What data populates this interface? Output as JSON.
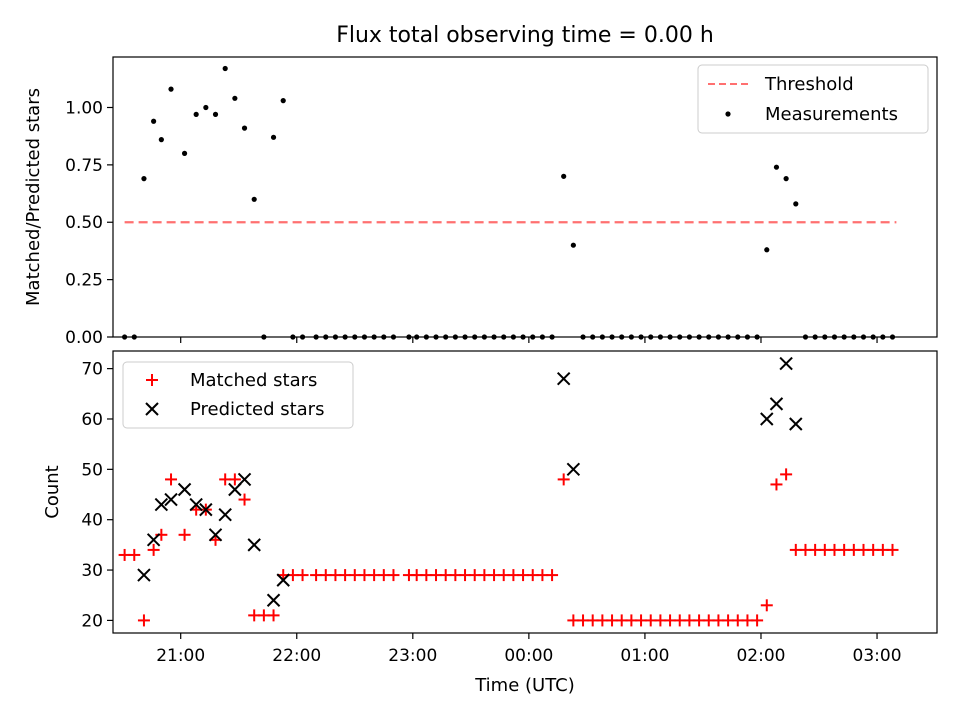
{
  "title": "Flux total observing time = 0.00 h",
  "colors": {
    "threshold": "#ff7070",
    "measurements": "#000000",
    "matched": "#ff0000",
    "predicted": "#000000"
  },
  "chart_data": [
    {
      "type": "scatter",
      "panel": "top",
      "ylabel": "Matched/Predicted stars",
      "xlabel": "",
      "xlim": [
        "20:25",
        "03:31"
      ],
      "ylim": [
        0,
        1.22
      ],
      "yticks": [
        "0.00",
        "0.25",
        "0.50",
        "0.75",
        "1.00"
      ],
      "xtick_values": [
        "21:00",
        "22:00",
        "23:00",
        "00:00",
        "01:00",
        "02:00",
        "03:00"
      ],
      "legend": {
        "placement": "top-right",
        "entries": [
          {
            "label": "Threshold",
            "marker": "dashed-line"
          },
          {
            "label": "Measurements",
            "marker": "dot"
          }
        ]
      },
      "threshold": {
        "name": "Threshold",
        "y": 0.5,
        "x_start": "20:31",
        "x_end": "03:10"
      },
      "series": [
        {
          "name": "Measurements",
          "marker": "dot",
          "points": [
            [
              "20:31",
              0
            ],
            [
              "20:36",
              0
            ],
            [
              "20:41",
              0.69
            ],
            [
              "20:46",
              0.94
            ],
            [
              "20:50",
              0.86
            ],
            [
              "20:55",
              1.08
            ],
            [
              "21:02",
              0.8
            ],
            [
              "21:08",
              0.97
            ],
            [
              "21:13",
              1.0
            ],
            [
              "21:18",
              0.97
            ],
            [
              "21:23",
              1.17
            ],
            [
              "21:28",
              1.04
            ],
            [
              "21:33",
              0.91
            ],
            [
              "21:38",
              0.6
            ],
            [
              "21:43",
              0
            ],
            [
              "21:48",
              0.87
            ],
            [
              "21:53",
              1.03
            ],
            [
              "21:58",
              0
            ],
            [
              "22:03",
              0
            ],
            [
              "22:10",
              0
            ],
            [
              "22:15",
              0
            ],
            [
              "22:20",
              0
            ],
            [
              "22:25",
              0
            ],
            [
              "22:30",
              0
            ],
            [
              "22:35",
              0
            ],
            [
              "22:40",
              0
            ],
            [
              "22:45",
              0
            ],
            [
              "22:50",
              0
            ],
            [
              "22:58",
              0
            ],
            [
              "23:02",
              0
            ],
            [
              "23:07",
              0
            ],
            [
              "23:12",
              0
            ],
            [
              "23:17",
              0
            ],
            [
              "23:22",
              0
            ],
            [
              "23:27",
              0
            ],
            [
              "23:32",
              0
            ],
            [
              "23:37",
              0
            ],
            [
              "23:42",
              0
            ],
            [
              "23:47",
              0
            ],
            [
              "23:52",
              0
            ],
            [
              "23:57",
              0
            ],
            [
              "00:02",
              0
            ],
            [
              "00:07",
              0
            ],
            [
              "00:12",
              0
            ],
            [
              "00:18",
              0.7
            ],
            [
              "00:23",
              0.4
            ],
            [
              "00:28",
              0
            ],
            [
              "00:33",
              0
            ],
            [
              "00:38",
              0
            ],
            [
              "00:43",
              0
            ],
            [
              "00:48",
              0
            ],
            [
              "00:53",
              0
            ],
            [
              "00:58",
              0
            ],
            [
              "01:03",
              0
            ],
            [
              "01:08",
              0
            ],
            [
              "01:13",
              0
            ],
            [
              "01:18",
              0
            ],
            [
              "01:23",
              0
            ],
            [
              "01:28",
              0
            ],
            [
              "01:33",
              0
            ],
            [
              "01:38",
              0
            ],
            [
              "01:43",
              0
            ],
            [
              "01:48",
              0
            ],
            [
              "01:53",
              0
            ],
            [
              "01:58",
              0
            ],
            [
              "02:03",
              0.38
            ],
            [
              "02:08",
              0.74
            ],
            [
              "02:13",
              0.69
            ],
            [
              "02:18",
              0.58
            ],
            [
              "02:23",
              0
            ],
            [
              "02:28",
              0
            ],
            [
              "02:33",
              0
            ],
            [
              "02:38",
              0
            ],
            [
              "02:43",
              0
            ],
            [
              "02:48",
              0
            ],
            [
              "02:53",
              0
            ],
            [
              "02:58",
              0
            ],
            [
              "03:03",
              0
            ],
            [
              "03:08",
              0
            ]
          ]
        }
      ]
    },
    {
      "type": "scatter",
      "panel": "bottom",
      "ylabel": "Count",
      "xlabel": "Time (UTC)",
      "xlim": [
        "20:25",
        "03:31"
      ],
      "ylim": [
        17.5,
        73.5
      ],
      "yticks": [
        "20",
        "30",
        "40",
        "50",
        "60",
        "70"
      ],
      "xticks": [
        "21:00",
        "22:00",
        "23:00",
        "00:00",
        "01:00",
        "02:00",
        "03:00"
      ],
      "legend": {
        "placement": "top-left",
        "entries": [
          {
            "label": "Matched stars",
            "marker": "plus"
          },
          {
            "label": "Predicted stars",
            "marker": "x"
          }
        ]
      },
      "series": [
        {
          "name": "Matched stars",
          "marker": "plus",
          "points": [
            [
              "20:31",
              33
            ],
            [
              "20:36",
              33
            ],
            [
              "20:41",
              20
            ],
            [
              "20:46",
              34
            ],
            [
              "20:50",
              37
            ],
            [
              "20:55",
              48
            ],
            [
              "21:02",
              37
            ],
            [
              "21:08",
              42
            ],
            [
              "21:13",
              42
            ],
            [
              "21:18",
              36
            ],
            [
              "21:23",
              48
            ],
            [
              "21:28",
              48
            ],
            [
              "21:33",
              44
            ],
            [
              "21:38",
              21
            ],
            [
              "21:43",
              21
            ],
            [
              "21:48",
              21
            ],
            [
              "21:53",
              29
            ],
            [
              "21:58",
              29
            ],
            [
              "22:03",
              29
            ],
            [
              "22:10",
              29
            ],
            [
              "22:15",
              29
            ],
            [
              "22:20",
              29
            ],
            [
              "22:25",
              29
            ],
            [
              "22:30",
              29
            ],
            [
              "22:35",
              29
            ],
            [
              "22:40",
              29
            ],
            [
              "22:45",
              29
            ],
            [
              "22:50",
              29
            ],
            [
              "22:58",
              29
            ],
            [
              "23:02",
              29
            ],
            [
              "23:07",
              29
            ],
            [
              "23:12",
              29
            ],
            [
              "23:17",
              29
            ],
            [
              "23:22",
              29
            ],
            [
              "23:27",
              29
            ],
            [
              "23:32",
              29
            ],
            [
              "23:37",
              29
            ],
            [
              "23:42",
              29
            ],
            [
              "23:47",
              29
            ],
            [
              "23:52",
              29
            ],
            [
              "23:57",
              29
            ],
            [
              "00:02",
              29
            ],
            [
              "00:07",
              29
            ],
            [
              "00:12",
              29
            ],
            [
              "00:18",
              48
            ],
            [
              "00:23",
              20
            ],
            [
              "00:28",
              20
            ],
            [
              "00:33",
              20
            ],
            [
              "00:38",
              20
            ],
            [
              "00:43",
              20
            ],
            [
              "00:48",
              20
            ],
            [
              "00:53",
              20
            ],
            [
              "00:58",
              20
            ],
            [
              "01:03",
              20
            ],
            [
              "01:08",
              20
            ],
            [
              "01:13",
              20
            ],
            [
              "01:18",
              20
            ],
            [
              "01:23",
              20
            ],
            [
              "01:28",
              20
            ],
            [
              "01:33",
              20
            ],
            [
              "01:38",
              20
            ],
            [
              "01:43",
              20
            ],
            [
              "01:48",
              20
            ],
            [
              "01:53",
              20
            ],
            [
              "01:58",
              20
            ],
            [
              "02:03",
              23
            ],
            [
              "02:08",
              47
            ],
            [
              "02:13",
              49
            ],
            [
              "02:18",
              34
            ],
            [
              "02:23",
              34
            ],
            [
              "02:28",
              34
            ],
            [
              "02:33",
              34
            ],
            [
              "02:38",
              34
            ],
            [
              "02:43",
              34
            ],
            [
              "02:48",
              34
            ],
            [
              "02:53",
              34
            ],
            [
              "02:58",
              34
            ],
            [
              "03:03",
              34
            ],
            [
              "03:08",
              34
            ]
          ]
        },
        {
          "name": "Predicted stars",
          "marker": "x",
          "points": [
            [
              "20:41",
              29
            ],
            [
              "20:46",
              36
            ],
            [
              "20:50",
              43
            ],
            [
              "20:55",
              44
            ],
            [
              "21:02",
              46
            ],
            [
              "21:08",
              43
            ],
            [
              "21:13",
              42
            ],
            [
              "21:18",
              37
            ],
            [
              "21:23",
              41
            ],
            [
              "21:28",
              46
            ],
            [
              "21:33",
              48
            ],
            [
              "21:38",
              35
            ],
            [
              "21:48",
              24
            ],
            [
              "21:53",
              28
            ],
            [
              "00:18",
              68
            ],
            [
              "00:23",
              50
            ],
            [
              "02:03",
              60
            ],
            [
              "02:08",
              63
            ],
            [
              "02:13",
              71
            ],
            [
              "02:18",
              59
            ]
          ]
        }
      ]
    }
  ]
}
